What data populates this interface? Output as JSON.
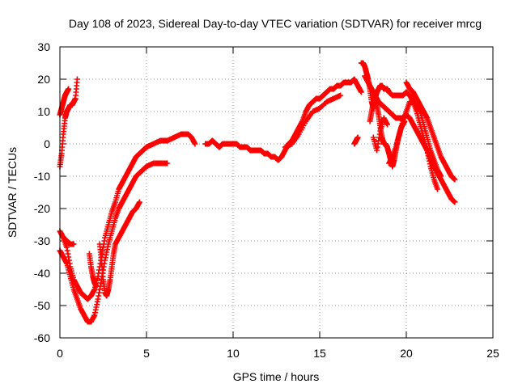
{
  "chart_data": {
    "type": "scatter",
    "title": "Day 108 of 2023, Sidereal Day-to-day VTEC variation (SDTVAR) for receiver mrcg",
    "xlabel": "GPS time / hours",
    "ylabel": "SDTVAR / TECUs",
    "xlim": [
      0,
      25
    ],
    "ylim": [
      -60,
      30
    ],
    "xticks": [
      0,
      5,
      10,
      15,
      20,
      25
    ],
    "yticks": [
      -60,
      -50,
      -40,
      -30,
      -20,
      -10,
      0,
      10,
      20,
      30
    ],
    "grid": true,
    "marker": "+",
    "color": "#ff0000",
    "series": [
      {
        "name": "a1",
        "x": [
          0.0,
          0.1,
          0.2,
          0.3,
          0.4,
          0.5,
          0.6,
          0.7,
          0.8,
          0.9,
          1.0
        ],
        "y": [
          -7,
          -3,
          3,
          8,
          10,
          11,
          12,
          12,
          13,
          14,
          20
        ]
      },
      {
        "name": "a2",
        "x": [
          0.0,
          0.1,
          0.2,
          0.3,
          0.4,
          0.5
        ],
        "y": [
          9,
          11,
          13,
          15,
          16,
          17
        ]
      },
      {
        "name": "a3",
        "x": [
          0.0,
          0.2,
          0.4,
          0.6,
          0.8,
          1.0,
          1.2,
          1.4,
          1.6,
          1.8,
          2.0,
          2.2,
          2.4,
          2.6,
          2.8,
          3.0,
          3.2,
          3.4,
          3.6,
          3.8,
          4.0,
          4.2,
          4.4,
          4.6,
          4.8,
          5.0,
          5.4,
          5.8,
          6.2,
          6.6,
          7.0,
          7.4,
          7.6,
          7.8
        ],
        "y": [
          -27,
          -29,
          -32,
          -38,
          -42,
          -44,
          -46,
          -47,
          -48,
          -47,
          -45,
          -41,
          -35,
          -29,
          -25,
          -21,
          -18,
          -14,
          -12,
          -10,
          -8,
          -6,
          -4,
          -3,
          -2,
          -1,
          0,
          1,
          1,
          2,
          3,
          3,
          2,
          0
        ]
      },
      {
        "name": "a4",
        "x": [
          0.0,
          0.2,
          0.4,
          0.6,
          0.8,
          1.0,
          1.2,
          1.4,
          1.6,
          1.8,
          2.0,
          2.2,
          2.4,
          2.6,
          2.8,
          3.0,
          3.2,
          3.4,
          3.6,
          3.8,
          4.0,
          4.2,
          4.4,
          4.6,
          4.8,
          5.0,
          5.4,
          5.8,
          6.2
        ],
        "y": [
          -33,
          -35,
          -37,
          -41,
          -45,
          -48,
          -51,
          -53,
          -55,
          -55,
          -53,
          -48,
          -42,
          -36,
          -31,
          -27,
          -23,
          -20,
          -18,
          -16,
          -14,
          -12,
          -10,
          -9,
          -8,
          -7,
          -6,
          -6,
          -6
        ]
      },
      {
        "name": "a5",
        "x": [
          1.7,
          1.8,
          1.9,
          2.0,
          2.1
        ],
        "y": [
          -34,
          -38,
          -41,
          -43,
          -44
        ]
      },
      {
        "name": "a6",
        "x": [
          2.3,
          2.4,
          2.5,
          2.6,
          2.7,
          2.8,
          2.9,
          3.0,
          3.1,
          3.2,
          3.4,
          3.6,
          3.8,
          4.0,
          4.2,
          4.4,
          4.6
        ],
        "y": [
          -31,
          -36,
          -42,
          -46,
          -47,
          -45,
          -42,
          -38,
          -34,
          -31,
          -29,
          -27,
          -25,
          -23,
          -21,
          -20,
          -18
        ]
      },
      {
        "name": "a7",
        "x": [
          0.2,
          0.4,
          0.6,
          0.8
        ],
        "y": [
          -29,
          -30,
          -31,
          -31
        ]
      },
      {
        "name": "b1",
        "x": [
          8.4,
          8.6,
          8.8,
          9.0,
          9.2,
          9.4,
          9.6,
          9.8,
          10.0,
          10.2,
          10.4,
          10.6,
          10.8,
          11.0,
          11.2,
          11.4,
          11.6,
          11.8,
          12.0,
          12.2,
          12.4,
          12.6,
          12.8,
          13.0,
          13.2,
          13.4,
          13.6,
          13.8,
          14.0,
          14.2,
          14.4,
          14.6,
          14.8,
          15.0,
          15.2,
          15.4,
          15.6,
          15.8,
          16.0,
          16.2,
          16.4,
          16.6,
          16.8,
          17.0,
          17.2,
          17.4
        ],
        "y": [
          0,
          0,
          1,
          0,
          -1,
          0,
          0,
          0,
          0,
          0,
          -1,
          -1,
          -1,
          -2,
          -2,
          -2,
          -2,
          -3,
          -3,
          -4,
          -4,
          -5,
          -4,
          -2,
          0,
          1,
          3,
          5,
          7,
          10,
          12,
          13,
          14,
          14,
          15,
          16,
          17,
          17,
          18,
          18,
          19,
          19,
          19,
          20,
          18,
          16
        ]
      },
      {
        "name": "b2",
        "x": [
          13.0,
          13.4,
          13.8,
          14.2,
          14.6,
          15.0,
          15.4,
          15.8,
          16.2
        ],
        "y": [
          -1,
          0,
          3,
          7,
          10,
          11,
          13,
          14,
          15
        ]
      },
      {
        "name": "b3",
        "x": [
          17.0,
          17.1,
          17.2
        ],
        "y": [
          0,
          1,
          2
        ]
      },
      {
        "name": "c1",
        "x": [
          17.4,
          17.5,
          17.6,
          17.7,
          17.8,
          17.9,
          18.0,
          18.1,
          18.2,
          18.3,
          18.4,
          18.5,
          18.6,
          18.7,
          18.8,
          18.9,
          19.0,
          19.2,
          19.4,
          19.6,
          19.8,
          20.0,
          20.2,
          20.4,
          20.6,
          20.8,
          21.0,
          21.2,
          21.4,
          21.6,
          21.8
        ],
        "y": [
          25,
          25,
          24,
          22,
          20,
          17,
          13,
          11,
          14,
          16,
          17,
          18,
          18,
          17,
          17,
          17,
          16,
          15,
          15,
          15,
          15,
          16,
          15,
          13,
          10,
          6,
          2,
          -2,
          -7,
          -11,
          -14
        ]
      },
      {
        "name": "c2",
        "x": [
          17.6,
          17.8,
          18.0,
          18.2,
          18.4,
          18.6,
          18.8,
          19.0,
          19.2,
          19.4,
          19.6,
          19.8,
          20.0,
          20.2,
          20.4,
          20.6,
          20.8,
          21.0,
          21.2,
          21.4,
          21.6,
          21.8,
          22.0,
          22.2,
          22.4,
          22.6,
          22.8
        ],
        "y": [
          21,
          19,
          17,
          15,
          13,
          12,
          11,
          10,
          9,
          8,
          8,
          8,
          9,
          8,
          6,
          4,
          2,
          0,
          -2,
          -5,
          -7,
          -9,
          -11,
          -13,
          -15,
          -17,
          -18
        ]
      },
      {
        "name": "c3",
        "x": [
          20.0,
          20.2,
          20.4,
          20.6,
          20.8,
          21.0,
          21.2,
          21.4,
          21.6,
          21.8,
          22.0,
          22.2,
          22.4,
          22.6,
          22.8
        ],
        "y": [
          19,
          17,
          16,
          14,
          12,
          10,
          8,
          5,
          2,
          -1,
          -4,
          -6,
          -8,
          -10,
          -11
        ]
      },
      {
        "name": "c4",
        "x": [
          19.0,
          19.2,
          19.4,
          19.6,
          19.8,
          20.0,
          20.2,
          20.4,
          20.6,
          20.8,
          21.0,
          21.2,
          21.4,
          21.6,
          21.8,
          22.0
        ],
        "y": [
          -6,
          -4,
          -1,
          3,
          7,
          10,
          13,
          13,
          12,
          10,
          6,
          2,
          -2,
          -5,
          -8,
          -10
        ]
      },
      {
        "name": "c5",
        "x": [
          17.9,
          18.0,
          18.1,
          18.2,
          18.3,
          18.4,
          18.5,
          18.6,
          18.7,
          18.8,
          18.9,
          19.0,
          19.1,
          19.2,
          19.3,
          19.4,
          19.5,
          19.6,
          19.7,
          19.8,
          19.9
        ],
        "y": [
          7,
          10,
          13,
          15,
          12,
          9,
          5,
          2,
          0,
          0,
          -1,
          -3,
          -5,
          -7,
          -5,
          -2,
          1,
          3,
          5,
          6,
          7
        ]
      },
      {
        "name": "c6",
        "x": [
          18.1,
          18.3,
          18.5,
          18.7,
          18.9
        ],
        "y": [
          2,
          -2,
          4,
          8,
          6
        ]
      }
    ]
  }
}
